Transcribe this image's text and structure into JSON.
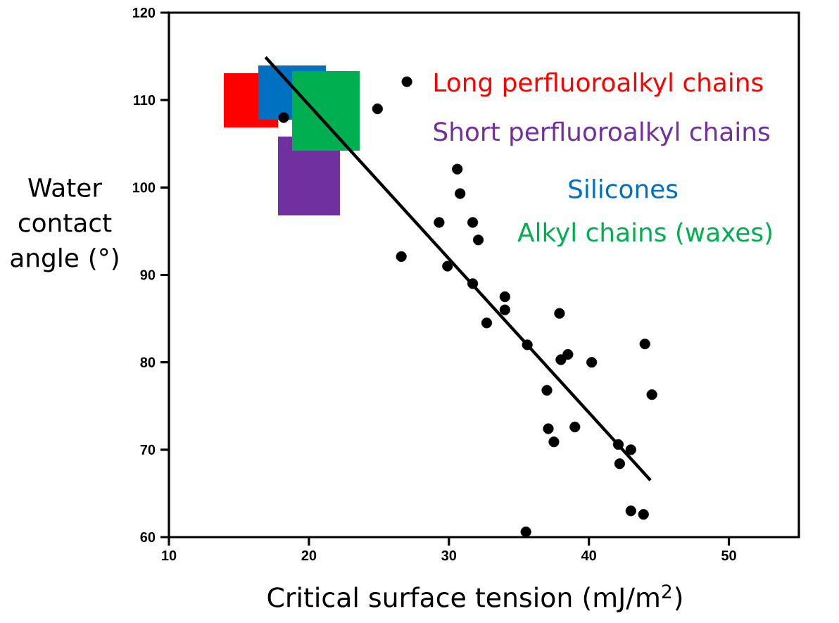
{
  "chart_data": {
    "type": "scatter",
    "xlabel": "Critical surface tension (mJ/m$^{2}$)",
    "ylabel": "Water contact angle (°)",
    "xlim": [
      10,
      55
    ],
    "ylim": [
      60,
      120
    ],
    "xticks": [
      10,
      20,
      30,
      40,
      50
    ],
    "yticks": [
      60,
      70,
      80,
      90,
      100,
      110,
      120
    ],
    "grid": false,
    "annotations": [
      "Long perfluoroalkyl chains",
      "Short perfluoroalkyl chains",
      "Silicones",
      "Alkyl chains (waxes)"
    ],
    "series": [
      {
        "marker": "circle",
        "color": "#000000",
        "x": [
          27.0,
          24.9,
          18.2,
          30.6,
          30.8,
          29.3,
          31.7,
          32.1,
          26.6,
          29.9,
          31.7,
          34.0,
          34.0,
          32.7,
          35.6,
          37.9,
          38.5,
          38.0,
          40.2,
          37.0,
          37.1,
          37.5,
          39.0,
          44.0,
          44.5,
          42.1,
          43.0,
          42.2,
          43.0,
          43.9,
          35.5
        ],
        "values": [
          112.1,
          109.0,
          108.0,
          102.1,
          99.3,
          96.0,
          96.0,
          94.0,
          92.1,
          91.0,
          89.0,
          87.5,
          86.0,
          84.5,
          82.0,
          85.6,
          80.9,
          80.3,
          80.0,
          76.8,
          72.4,
          70.9,
          72.6,
          82.1,
          76.3,
          70.6,
          70.0,
          68.4,
          63.0,
          62.6,
          60.6
        ]
      },
      {
        "type": "line",
        "marker": "none",
        "line_style": "solid",
        "color": "#000000",
        "x": [
          16.9,
          44.4
        ],
        "values": [
          114.9,
          66.5
        ]
      }
    ]
  }
}
